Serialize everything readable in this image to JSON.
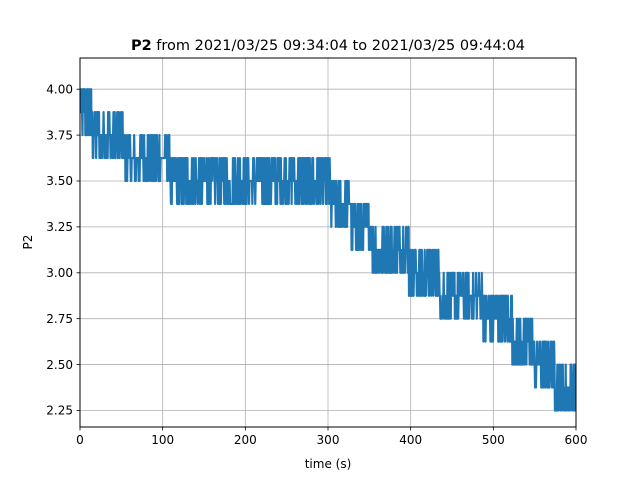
{
  "chart_data": {
    "type": "line",
    "title": {
      "bold": "P2",
      "rest": " from 2021/03/25 09:34:04 to 2021/03/25 09:44:04"
    },
    "xlabel": "time (s)",
    "ylabel": "P2",
    "xlim": [
      0,
      600
    ],
    "ylim": [
      2.16,
      4.17
    ],
    "xticks": [
      0,
      100,
      200,
      300,
      400,
      500,
      600
    ],
    "xtick_labels": [
      "0",
      "100",
      "200",
      "300",
      "400",
      "500",
      "600"
    ],
    "yticks": [
      2.25,
      2.5,
      2.75,
      3.0,
      3.25,
      3.5,
      3.75,
      4.0
    ],
    "ytick_labels": [
      "2.25",
      "2.50",
      "2.75",
      "3.00",
      "3.25",
      "3.50",
      "3.75",
      "4.00"
    ],
    "grid": true,
    "line_color": "#1f77b4",
    "series": [
      {
        "quantization_step": 0.125,
        "trend": [
          [
            0,
            3.86
          ],
          [
            10,
            3.82
          ],
          [
            20,
            3.8
          ],
          [
            30,
            3.75
          ],
          [
            40,
            3.72
          ],
          [
            50,
            3.69
          ],
          [
            60,
            3.68
          ],
          [
            70,
            3.67
          ],
          [
            80,
            3.68
          ],
          [
            90,
            3.67
          ],
          [
            100,
            3.64
          ],
          [
            110,
            3.55
          ],
          [
            120,
            3.52
          ],
          [
            130,
            3.5
          ],
          [
            140,
            3.5
          ],
          [
            150,
            3.5
          ],
          [
            160,
            3.5
          ],
          [
            170,
            3.5
          ],
          [
            180,
            3.5
          ],
          [
            190,
            3.51
          ],
          [
            200,
            3.52
          ],
          [
            210,
            3.52
          ],
          [
            220,
            3.52
          ],
          [
            230,
            3.53
          ],
          [
            240,
            3.54
          ],
          [
            250,
            3.55
          ],
          [
            260,
            3.55
          ],
          [
            270,
            3.54
          ],
          [
            280,
            3.52
          ],
          [
            290,
            3.5
          ],
          [
            300,
            3.45
          ],
          [
            310,
            3.4
          ],
          [
            320,
            3.35
          ],
          [
            330,
            3.3
          ],
          [
            340,
            3.25
          ],
          [
            350,
            3.2
          ],
          [
            360,
            3.16
          ],
          [
            370,
            3.14
          ],
          [
            380,
            3.12
          ],
          [
            390,
            3.1
          ],
          [
            400,
            3.05
          ],
          [
            410,
            3.0
          ],
          [
            420,
            2.97
          ],
          [
            430,
            2.95
          ],
          [
            440,
            2.92
          ],
          [
            450,
            2.9
          ],
          [
            460,
            2.88
          ],
          [
            470,
            2.87
          ],
          [
            480,
            2.85
          ],
          [
            490,
            2.8
          ],
          [
            500,
            2.76
          ],
          [
            510,
            2.74
          ],
          [
            520,
            2.7
          ],
          [
            530,
            2.65
          ],
          [
            540,
            2.6
          ],
          [
            550,
            2.55
          ],
          [
            560,
            2.5
          ],
          [
            570,
            2.45
          ],
          [
            580,
            2.42
          ],
          [
            590,
            2.4
          ],
          [
            600,
            2.38
          ]
        ],
        "noise_amplitude": 0.125
      }
    ]
  }
}
